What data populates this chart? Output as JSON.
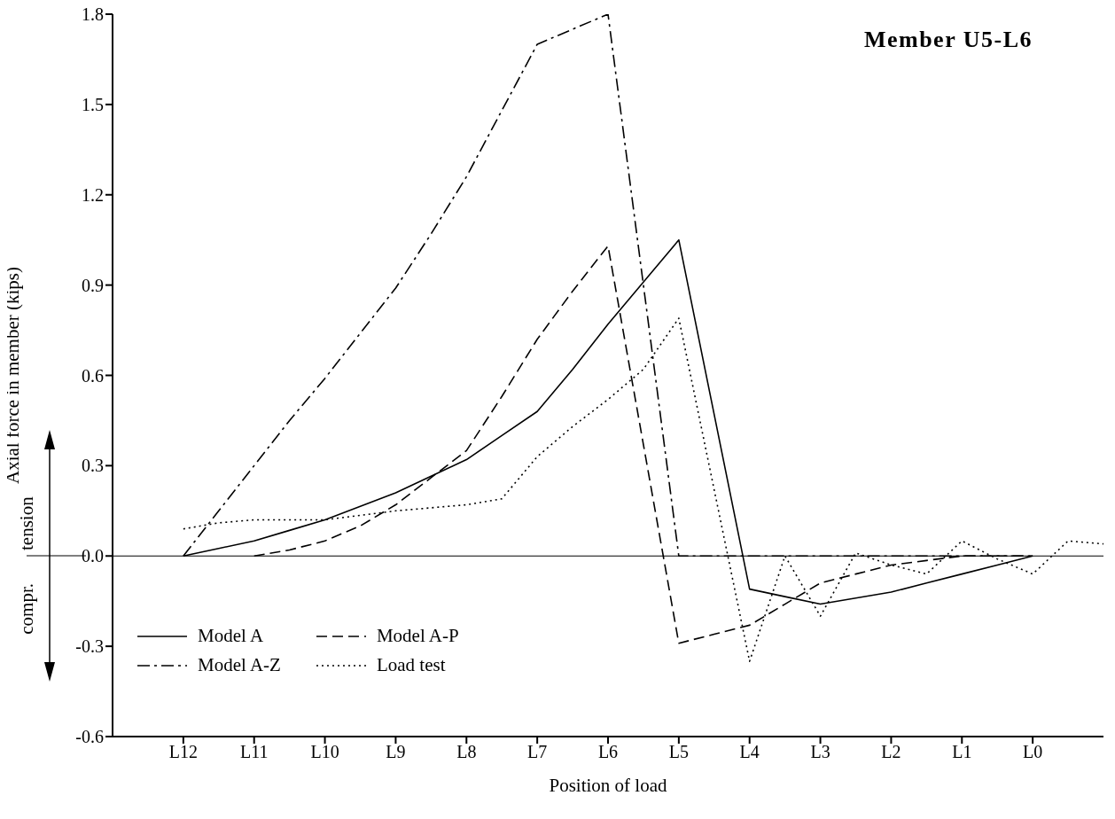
{
  "chart_data": {
    "type": "line",
    "title": "Member U5-L6",
    "xlabel": "Position of load",
    "ylabel": "Axial force in member (kips)",
    "annotations": [
      "tension",
      "compr."
    ],
    "categories": [
      null,
      null,
      "L12",
      null,
      "L11",
      null,
      "L10",
      null,
      "L9",
      null,
      "L8",
      null,
      "L7",
      null,
      "L6",
      null,
      "L5",
      null,
      "L4",
      null,
      "L3",
      null,
      "L2",
      null,
      "L1",
      null,
      "L0",
      null,
      null
    ],
    "ylim": [
      -0.6,
      1.8
    ],
    "yticks": [
      -0.6,
      -0.3,
      {
        "value": 0,
        "label": "0.0"
      },
      0.3,
      0.6,
      0.9,
      1.2,
      1.5,
      1.8
    ],
    "ref_lines": [
      {
        "axis": "y",
        "value": 0,
        "color": "#000000"
      }
    ],
    "legend": "bottom left",
    "series": [
      {
        "name": "Model A",
        "color": "#000000",
        "line_style": "solid",
        "values": [
          null,
          null,
          0,
          0.025,
          0.05,
          0.085,
          0.12,
          0.165,
          0.21,
          0.265,
          0.32,
          0.4,
          0.48,
          0.62,
          0.77,
          0.91,
          1.05,
          0.47,
          -0.11,
          -0.135,
          -0.16,
          -0.14,
          -0.12,
          -0.09,
          -0.06,
          -0.03,
          0,
          null,
          null
        ]
      },
      {
        "name": "Model A-Z",
        "color": "#000000",
        "line_style": "dashdot",
        "values": [
          null,
          null,
          0,
          0.15,
          0.3,
          0.45,
          0.59,
          0.74,
          0.89,
          1.07,
          1.26,
          1.48,
          1.7,
          1.75,
          1.8,
          0.9,
          0,
          0,
          0,
          0,
          0,
          0,
          0,
          0,
          0,
          0,
          0,
          null,
          null
        ]
      },
      {
        "name": "Model A-P",
        "color": "#000000",
        "line_style": "dashed",
        "values": [
          null,
          null,
          null,
          null,
          0,
          0.02,
          0.05,
          0.1,
          0.17,
          0.26,
          0.35,
          0.53,
          0.72,
          0.88,
          1.03,
          0.37,
          -0.29,
          -0.26,
          -0.23,
          -0.16,
          -0.09,
          -0.06,
          -0.03,
          -0.015,
          0,
          0,
          0,
          null,
          null
        ]
      },
      {
        "name": "Load test",
        "color": "#000000",
        "line_style": "dotted",
        "values": [
          null,
          null,
          0.09,
          0.11,
          0.12,
          0.12,
          0.12,
          0.135,
          0.15,
          0.16,
          0.17,
          0.19,
          0.33,
          0.43,
          0.52,
          0.62,
          0.79,
          0.22,
          -0.35,
          0,
          -0.2,
          0.01,
          -0.03,
          -0.06,
          0.05,
          -0.01,
          -0.06,
          0.05,
          0.04
        ]
      }
    ]
  }
}
